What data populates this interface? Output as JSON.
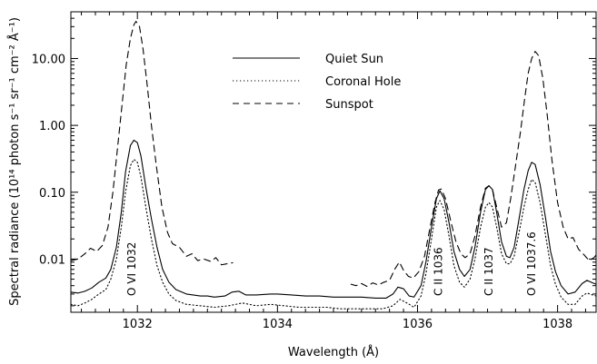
{
  "chart_data": {
    "type": "line",
    "title": "",
    "xlabel": "Wavelength (Å)",
    "ylabel": "Spectral radiance (10¹⁴ photon s⁻¹ sr⁻¹ cm⁻² Å⁻¹)",
    "xlim": [
      1031.05,
      1038.55
    ],
    "ylim": [
      0.0016,
      50
    ],
    "yscale": "log",
    "x_ticks": [
      1032,
      1034,
      1036,
      1038
    ],
    "x_tick_labels": [
      "1032",
      "1034",
      "1036",
      "1038"
    ],
    "y_ticks": [
      0.01,
      0.1,
      1.0,
      10.0
    ],
    "y_tick_labels": [
      "0.01",
      "0.10",
      "1.00",
      "10.00"
    ],
    "legend": {
      "placement": "top-center",
      "entries": [
        "Quiet Sun",
        "Coronal Hole",
        "Sunspot"
      ]
    },
    "annotations": [
      {
        "text": "O VI 1032",
        "x": 1031.92
      },
      {
        "text": "C II 1036",
        "x": 1036.3
      },
      {
        "text": "C II 1037",
        "x": 1037.02
      },
      {
        "text": "O VI 1037.6",
        "x": 1037.63
      }
    ],
    "series": [
      {
        "name": "Quiet Sun",
        "style": "solid",
        "segments": [
          [
            [
              1031.05,
              0.0032
            ],
            [
              1031.15,
              0.0031
            ],
            [
              1031.25,
              0.0033
            ],
            [
              1031.35,
              0.0037
            ],
            [
              1031.45,
              0.0045
            ],
            [
              1031.55,
              0.0052
            ],
            [
              1031.62,
              0.007
            ],
            [
              1031.7,
              0.015
            ],
            [
              1031.77,
              0.05
            ],
            [
              1031.83,
              0.2
            ],
            [
              1031.9,
              0.5
            ],
            [
              1031.95,
              0.6
            ],
            [
              1032.0,
              0.55
            ],
            [
              1032.05,
              0.35
            ],
            [
              1032.12,
              0.12
            ],
            [
              1032.2,
              0.04
            ],
            [
              1032.28,
              0.015
            ],
            [
              1032.36,
              0.007
            ],
            [
              1032.45,
              0.0045
            ],
            [
              1032.55,
              0.0035
            ],
            [
              1032.7,
              0.003
            ],
            [
              1032.9,
              0.0028
            ],
            [
              1033.0,
              0.0028
            ],
            [
              1033.1,
              0.0027
            ],
            [
              1033.25,
              0.0028
            ],
            [
              1033.35,
              0.0032
            ],
            [
              1033.45,
              0.0033
            ],
            [
              1033.55,
              0.0029
            ],
            [
              1033.7,
              0.0029
            ],
            [
              1033.9,
              0.003
            ],
            [
              1034.0,
              0.003
            ],
            [
              1034.2,
              0.0029
            ],
            [
              1034.4,
              0.0028
            ],
            [
              1034.6,
              0.0028
            ],
            [
              1034.8,
              0.0027
            ],
            [
              1035.0,
              0.0027
            ],
            [
              1035.2,
              0.0027
            ],
            [
              1035.4,
              0.0026
            ],
            [
              1035.55,
              0.0026
            ],
            [
              1035.65,
              0.003
            ],
            [
              1035.72,
              0.0038
            ],
            [
              1035.8,
              0.0036
            ],
            [
              1035.88,
              0.0028
            ],
            [
              1035.95,
              0.0027
            ],
            [
              1036.05,
              0.004
            ],
            [
              1036.12,
              0.009
            ],
            [
              1036.2,
              0.03
            ],
            [
              1036.27,
              0.08
            ],
            [
              1036.32,
              0.105
            ],
            [
              1036.38,
              0.08
            ],
            [
              1036.45,
              0.035
            ],
            [
              1036.52,
              0.013
            ],
            [
              1036.6,
              0.007
            ],
            [
              1036.67,
              0.0055
            ],
            [
              1036.75,
              0.007
            ],
            [
              1036.82,
              0.015
            ],
            [
              1036.9,
              0.05
            ],
            [
              1036.97,
              0.11
            ],
            [
              1037.02,
              0.125
            ],
            [
              1037.07,
              0.11
            ],
            [
              1037.13,
              0.05
            ],
            [
              1037.2,
              0.018
            ],
            [
              1037.27,
              0.011
            ],
            [
              1037.32,
              0.0105
            ],
            [
              1037.38,
              0.015
            ],
            [
              1037.45,
              0.04
            ],
            [
              1037.52,
              0.11
            ],
            [
              1037.58,
              0.21
            ],
            [
              1037.63,
              0.28
            ],
            [
              1037.68,
              0.26
            ],
            [
              1037.75,
              0.13
            ],
            [
              1037.83,
              0.04
            ],
            [
              1037.9,
              0.013
            ],
            [
              1037.97,
              0.0065
            ],
            [
              1038.05,
              0.004
            ],
            [
              1038.15,
              0.003
            ],
            [
              1038.25,
              0.0032
            ],
            [
              1038.35,
              0.0043
            ],
            [
              1038.42,
              0.0048
            ],
            [
              1038.5,
              0.0044
            ],
            [
              1038.55,
              0.0042
            ]
          ]
        ]
      },
      {
        "name": "Coronal Hole",
        "style": "dotted",
        "segments": [
          [
            [
              1031.05,
              0.0021
            ],
            [
              1031.15,
              0.002
            ],
            [
              1031.25,
              0.0022
            ],
            [
              1031.35,
              0.0025
            ],
            [
              1031.45,
              0.003
            ],
            [
              1031.55,
              0.0035
            ],
            [
              1031.62,
              0.005
            ],
            [
              1031.7,
              0.01
            ],
            [
              1031.77,
              0.03
            ],
            [
              1031.83,
              0.1
            ],
            [
              1031.9,
              0.25
            ],
            [
              1031.95,
              0.31
            ],
            [
              1032.0,
              0.28
            ],
            [
              1032.05,
              0.17
            ],
            [
              1032.12,
              0.06
            ],
            [
              1032.2,
              0.02
            ],
            [
              1032.28,
              0.008
            ],
            [
              1032.36,
              0.0045
            ],
            [
              1032.45,
              0.003
            ],
            [
              1032.55,
              0.0024
            ],
            [
              1032.7,
              0.0021
            ],
            [
              1032.9,
              0.002
            ],
            [
              1033.1,
              0.0019
            ],
            [
              1033.3,
              0.002
            ],
            [
              1033.5,
              0.0022
            ],
            [
              1033.7,
              0.002
            ],
            [
              1033.9,
              0.0021
            ],
            [
              1034.1,
              0.002
            ],
            [
              1034.3,
              0.0019
            ],
            [
              1034.5,
              0.0019
            ],
            [
              1034.7,
              0.0019
            ],
            [
              1034.9,
              0.0018
            ],
            [
              1035.1,
              0.0018
            ],
            [
              1035.3,
              0.0018
            ],
            [
              1035.5,
              0.0018
            ],
            [
              1035.65,
              0.002
            ],
            [
              1035.75,
              0.0025
            ],
            [
              1035.85,
              0.0022
            ],
            [
              1035.95,
              0.0019
            ],
            [
              1036.05,
              0.0028
            ],
            [
              1036.12,
              0.006
            ],
            [
              1036.2,
              0.02
            ],
            [
              1036.27,
              0.06
            ],
            [
              1036.32,
              0.075
            ],
            [
              1036.38,
              0.055
            ],
            [
              1036.45,
              0.022
            ],
            [
              1036.52,
              0.008
            ],
            [
              1036.6,
              0.0045
            ],
            [
              1036.67,
              0.0038
            ],
            [
              1036.75,
              0.005
            ],
            [
              1036.82,
              0.01
            ],
            [
              1036.9,
              0.03
            ],
            [
              1036.97,
              0.06
            ],
            [
              1037.02,
              0.07
            ],
            [
              1037.07,
              0.06
            ],
            [
              1037.13,
              0.03
            ],
            [
              1037.2,
              0.012
            ],
            [
              1037.27,
              0.0085
            ],
            [
              1037.32,
              0.0085
            ],
            [
              1037.38,
              0.011
            ],
            [
              1037.45,
              0.025
            ],
            [
              1037.52,
              0.06
            ],
            [
              1037.58,
              0.11
            ],
            [
              1037.63,
              0.155
            ],
            [
              1037.68,
              0.14
            ],
            [
              1037.75,
              0.07
            ],
            [
              1037.83,
              0.022
            ],
            [
              1037.9,
              0.008
            ],
            [
              1037.97,
              0.0042
            ],
            [
              1038.05,
              0.0027
            ],
            [
              1038.15,
              0.0021
            ],
            [
              1038.25,
              0.0021
            ],
            [
              1038.35,
              0.0028
            ],
            [
              1038.42,
              0.0031
            ],
            [
              1038.5,
              0.0029
            ],
            [
              1038.55,
              0.0028
            ]
          ]
        ]
      },
      {
        "name": "Sunspot",
        "style": "dashed",
        "segments": [
          [
            [
              1031.05,
              0.0095
            ],
            [
              1031.15,
              0.01
            ],
            [
              1031.25,
              0.012
            ],
            [
              1031.33,
              0.0145
            ],
            [
              1031.42,
              0.013
            ],
            [
              1031.5,
              0.016
            ],
            [
              1031.58,
              0.03
            ],
            [
              1031.65,
              0.1
            ],
            [
              1031.72,
              0.5
            ],
            [
              1031.78,
              2.0
            ],
            [
              1031.84,
              8.0
            ],
            [
              1031.9,
              20.0
            ],
            [
              1031.95,
              32.0
            ],
            [
              1031.98,
              36.0
            ],
            [
              1032.03,
              30.0
            ],
            [
              1032.08,
              14.0
            ],
            [
              1032.14,
              4.0
            ],
            [
              1032.2,
              1.0
            ],
            [
              1032.27,
              0.25
            ],
            [
              1032.35,
              0.06
            ],
            [
              1032.43,
              0.025
            ],
            [
              1032.5,
              0.017
            ],
            [
              1032.6,
              0.015
            ],
            [
              1032.7,
              0.011
            ],
            [
              1032.78,
              0.012
            ],
            [
              1032.86,
              0.0095
            ],
            [
              1032.95,
              0.01
            ],
            [
              1033.05,
              0.0092
            ],
            [
              1033.12,
              0.0105
            ],
            [
              1033.2,
              0.0082
            ],
            [
              1033.28,
              0.0085
            ],
            [
              1033.36,
              0.0088
            ]
          ],
          [
            [
              1035.05,
              0.0042
            ],
            [
              1035.12,
              0.004
            ],
            [
              1035.2,
              0.0043
            ],
            [
              1035.28,
              0.0039
            ],
            [
              1035.36,
              0.0044
            ],
            [
              1035.44,
              0.0041
            ],
            [
              1035.52,
              0.0045
            ],
            [
              1035.6,
              0.0048
            ],
            [
              1035.68,
              0.0072
            ],
            [
              1035.74,
              0.009
            ],
            [
              1035.8,
              0.0068
            ],
            [
              1035.87,
              0.0055
            ],
            [
              1035.94,
              0.0052
            ],
            [
              1036.02,
              0.0065
            ],
            [
              1036.1,
              0.011
            ],
            [
              1036.18,
              0.03
            ],
            [
              1036.25,
              0.07
            ],
            [
              1036.3,
              0.108
            ],
            [
              1036.34,
              0.112
            ],
            [
              1036.4,
              0.08
            ],
            [
              1036.48,
              0.035
            ],
            [
              1036.55,
              0.018
            ],
            [
              1036.62,
              0.012
            ],
            [
              1036.68,
              0.0105
            ],
            [
              1036.75,
              0.012
            ],
            [
              1036.82,
              0.022
            ],
            [
              1036.9,
              0.06
            ],
            [
              1036.97,
              0.115
            ],
            [
              1037.02,
              0.125
            ],
            [
              1037.07,
              0.11
            ],
            [
              1037.13,
              0.06
            ],
            [
              1037.2,
              0.03
            ],
            [
              1037.27,
              0.035
            ],
            [
              1037.33,
              0.08
            ],
            [
              1037.4,
              0.25
            ],
            [
              1037.47,
              0.8
            ],
            [
              1037.53,
              2.5
            ],
            [
              1037.58,
              6.0
            ],
            [
              1037.63,
              10.0
            ],
            [
              1037.68,
              12.8
            ],
            [
              1037.73,
              11.0
            ],
            [
              1037.79,
              5.0
            ],
            [
              1037.85,
              1.5
            ],
            [
              1037.92,
              0.3
            ],
            [
              1038.0,
              0.07
            ],
            [
              1038.08,
              0.03
            ],
            [
              1038.15,
              0.02
            ],
            [
              1038.22,
              0.021
            ],
            [
              1038.3,
              0.014
            ],
            [
              1038.38,
              0.0115
            ],
            [
              1038.45,
              0.0095
            ],
            [
              1038.52,
              0.0105
            ],
            [
              1038.55,
              0.0115
            ]
          ]
        ]
      }
    ]
  }
}
